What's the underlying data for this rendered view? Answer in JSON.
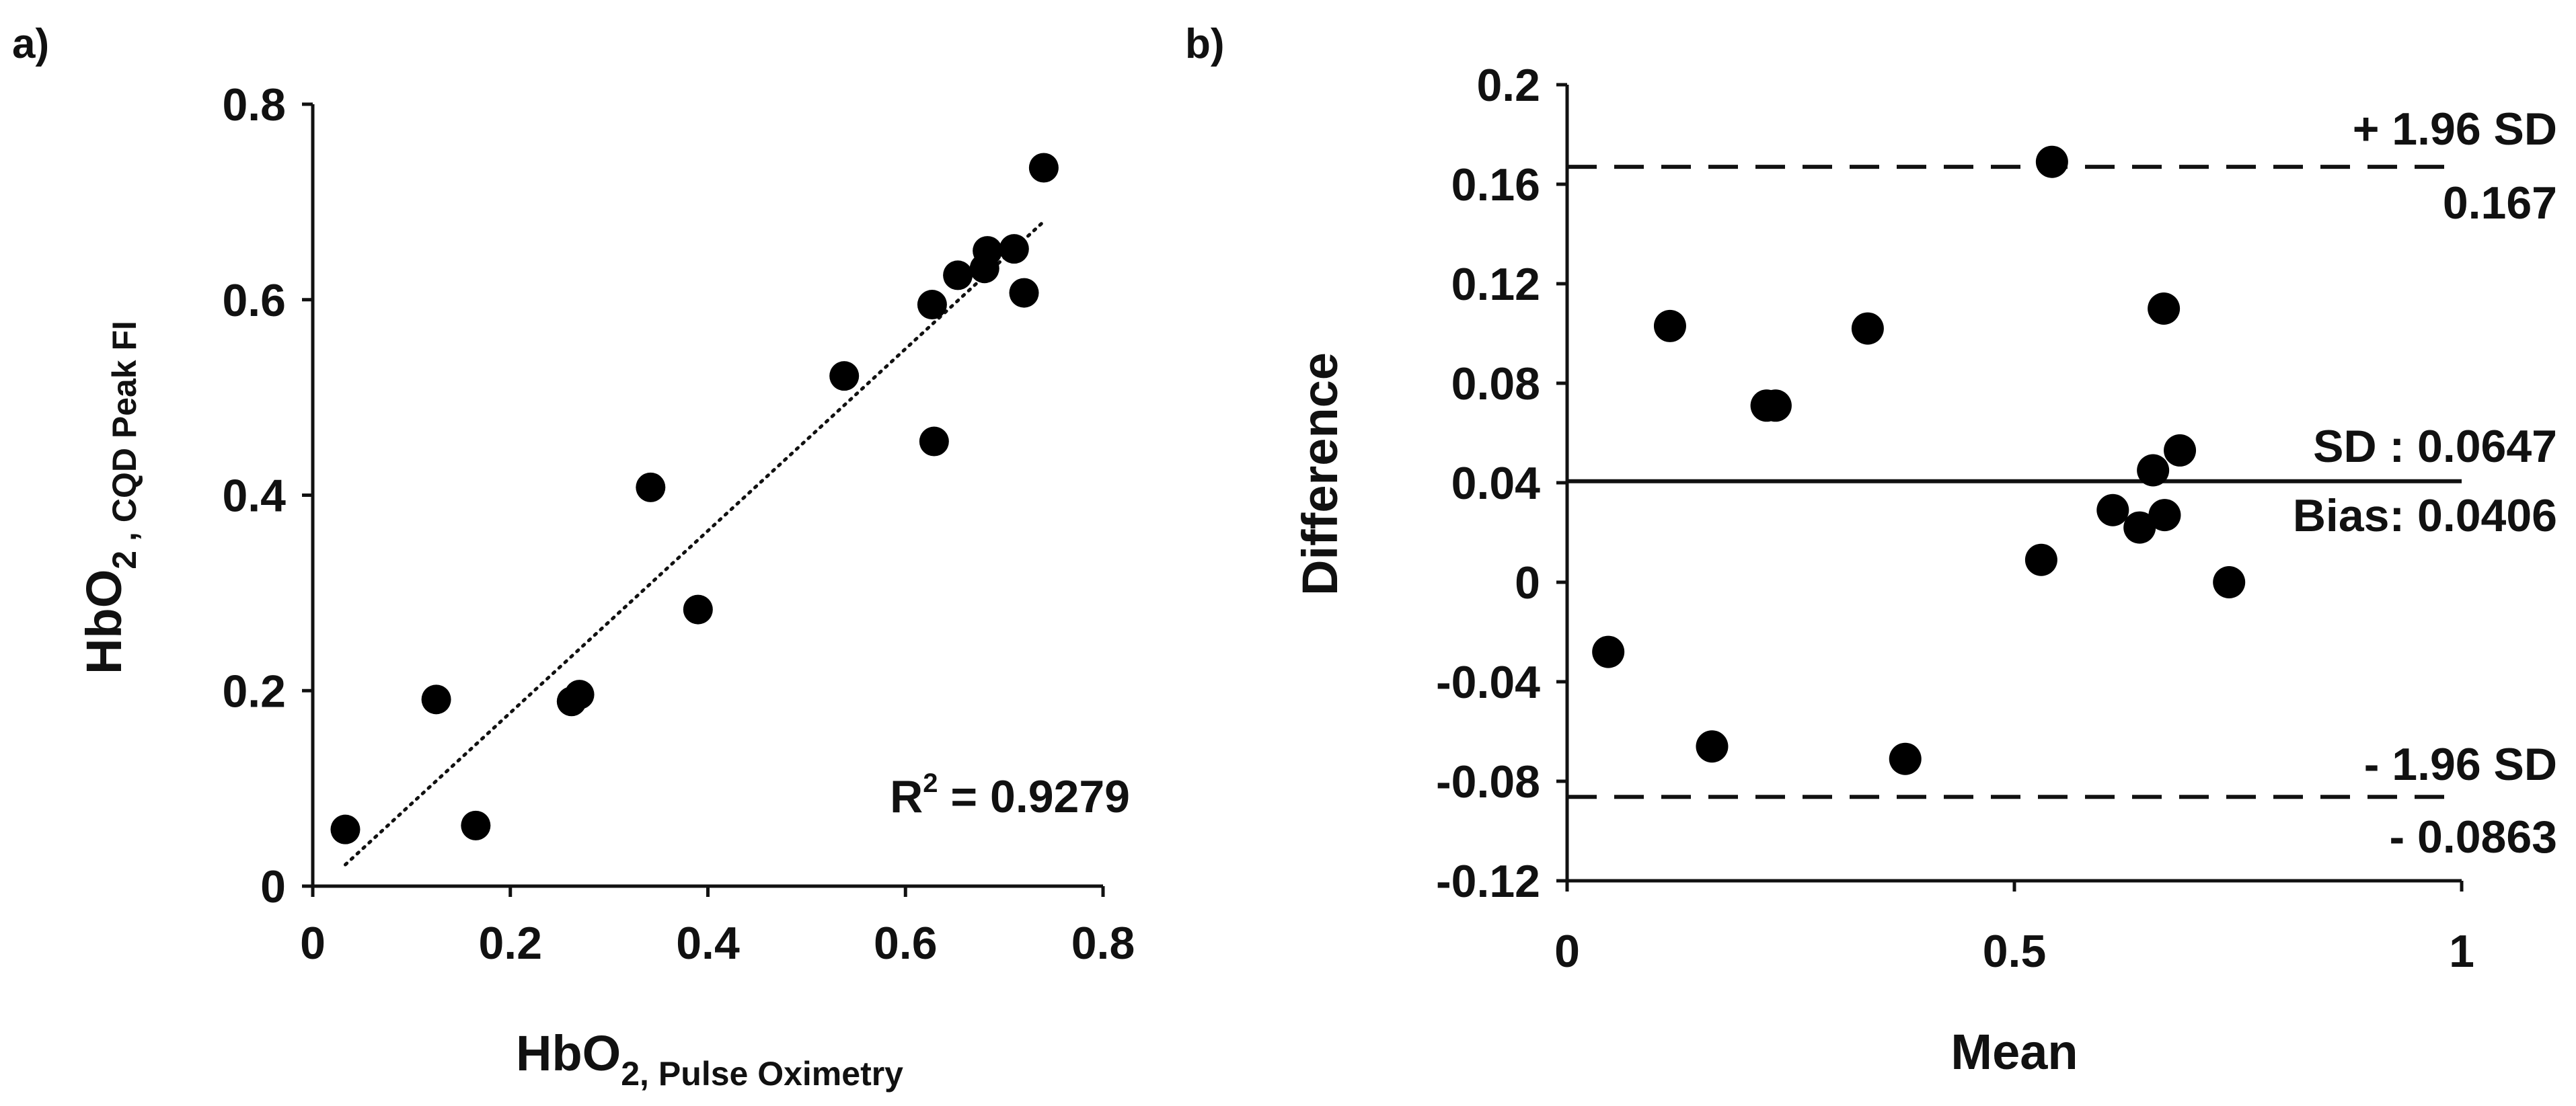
{
  "panel_labels": {
    "a": "a)",
    "b": "b)"
  },
  "chart_data": [
    {
      "type": "scatter",
      "title": "",
      "xlabel": {
        "main": "HbO",
        "sub": "2,",
        "subscript": "Pulse Oximetry"
      },
      "ylabel": {
        "main": "HbO",
        "sub": "2 ,",
        "subscript": "CQD Peak FI"
      },
      "xlim": [
        0,
        0.8
      ],
      "ylim": [
        0,
        0.8
      ],
      "x_ticks": [
        "0",
        "0.2",
        "0.4",
        "0.6",
        "0.8"
      ],
      "y_ticks": [
        "0",
        "0.2",
        "0.4",
        "0.6",
        "0.8"
      ],
      "tick_values": [
        0,
        0.2,
        0.4,
        0.6,
        0.8
      ],
      "grid": false,
      "points": [
        {
          "x": 0.033,
          "y": 0.058
        },
        {
          "x": 0.125,
          "y": 0.191
        },
        {
          "x": 0.165,
          "y": 0.062
        },
        {
          "x": 0.262,
          "y": 0.189
        },
        {
          "x": 0.27,
          "y": 0.196
        },
        {
          "x": 0.342,
          "y": 0.408
        },
        {
          "x": 0.39,
          "y": 0.283
        },
        {
          "x": 0.538,
          "y": 0.522
        },
        {
          "x": 0.627,
          "y": 0.595
        },
        {
          "x": 0.629,
          "y": 0.455
        },
        {
          "x": 0.653,
          "y": 0.625
        },
        {
          "x": 0.68,
          "y": 0.632
        },
        {
          "x": 0.683,
          "y": 0.65
        },
        {
          "x": 0.71,
          "y": 0.652
        },
        {
          "x": 0.72,
          "y": 0.607
        },
        {
          "x": 0.74,
          "y": 0.735
        }
      ],
      "trendline": {
        "style": "dotted",
        "x_start": 0.033,
        "y_start": 0.022,
        "x_end": 0.74,
        "y_end": 0.68
      },
      "r_squared": {
        "prefix": "R",
        "sup": "2",
        "value": " = 0.9279"
      }
    },
    {
      "type": "scatter",
      "title": "",
      "xlabel": "Mean",
      "ylabel": "Difference",
      "xlim": [
        0,
        1
      ],
      "ylim": [
        -0.12,
        0.2
      ],
      "x_ticks": [
        "0",
        "0.5",
        "1"
      ],
      "x_tick_values": [
        0,
        0.5,
        1
      ],
      "y_ticks": [
        "0.2",
        "0.16",
        "0.12",
        "0.08",
        "0.04",
        "0",
        "-0.04",
        "-0.08",
        "-0.12"
      ],
      "y_tick_values": [
        0.2,
        0.16,
        0.12,
        0.08,
        0.04,
        0,
        -0.04,
        -0.08,
        -0.12
      ],
      "grid": false,
      "points": [
        {
          "x": 0.046,
          "y": -0.028
        },
        {
          "x": 0.115,
          "y": 0.103
        },
        {
          "x": 0.162,
          "y": -0.066
        },
        {
          "x": 0.223,
          "y": 0.071
        },
        {
          "x": 0.233,
          "y": 0.071
        },
        {
          "x": 0.336,
          "y": 0.102
        },
        {
          "x": 0.378,
          "y": -0.071
        },
        {
          "x": 0.53,
          "y": 0.009
        },
        {
          "x": 0.542,
          "y": 0.169
        },
        {
          "x": 0.61,
          "y": 0.029
        },
        {
          "x": 0.64,
          "y": 0.022
        },
        {
          "x": 0.655,
          "y": 0.045
        },
        {
          "x": 0.667,
          "y": 0.11
        },
        {
          "x": 0.668,
          "y": 0.027
        },
        {
          "x": 0.685,
          "y": 0.053
        },
        {
          "x": 0.74,
          "y": 0.0
        }
      ],
      "lines": {
        "upper": {
          "value": 0.167,
          "style": "dashed",
          "label": "+ 1.96 SD",
          "value_label": "0.167"
        },
        "bias": {
          "value": 0.0406,
          "style": "solid",
          "label": "SD : 0.0647",
          "value_label": "Bias: 0.0406"
        },
        "lower": {
          "value": -0.0863,
          "style": "dashed",
          "label": "- 1.96 SD",
          "value_label": "- 0.0863"
        }
      }
    }
  ]
}
